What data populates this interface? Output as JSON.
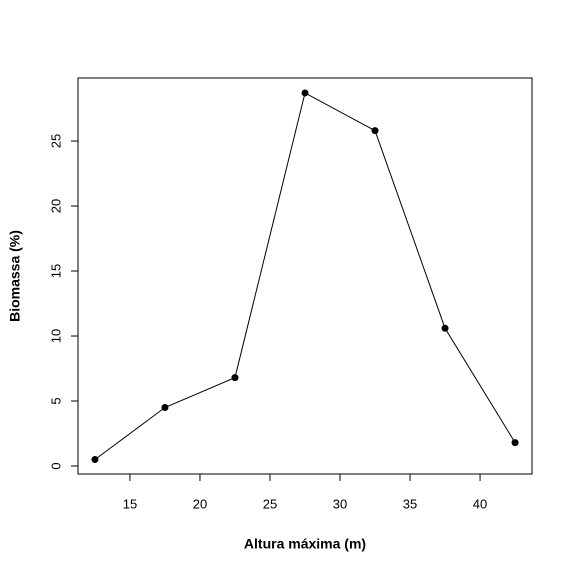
{
  "chart_data": {
    "type": "line",
    "x_label": "Altura máxima (m)",
    "y_label": "Biomassa (%)",
    "x": [
      12.5,
      17.5,
      22.5,
      27.5,
      32.5,
      37.5,
      42.5
    ],
    "values": [
      0.5,
      4.5,
      6.8,
      28.7,
      25.8,
      10.6,
      1.8
    ],
    "color": "#000000",
    "xlim": [
      11.29,
      43.71
    ],
    "ylim": [
      -0.615,
      29.85
    ],
    "xticks": [
      15,
      20,
      25,
      30,
      35,
      40
    ],
    "yticks": [
      0,
      5,
      10,
      15,
      20,
      25
    ],
    "grid": false
  }
}
